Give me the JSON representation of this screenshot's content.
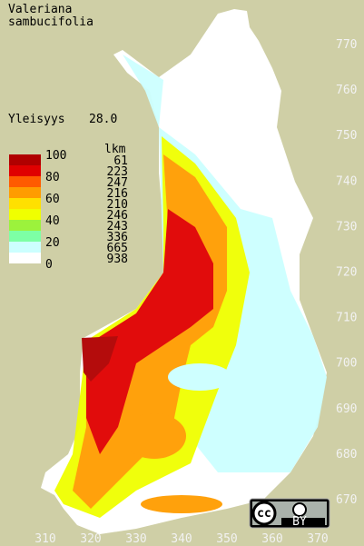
{
  "title": [
    "Valeriana",
    "sambucifolia"
  ],
  "frequency": {
    "label": "Yleisyys",
    "value": "28.0"
  },
  "legend": {
    "count_header": "lkm",
    "scale_labels": [
      100,
      80,
      60,
      40,
      20,
      0
    ],
    "bins": [
      {
        "color": "#b00000",
        "count": 61
      },
      {
        "color": "#e00000",
        "count": 223
      },
      {
        "color": "#ff5a00",
        "count": 247
      },
      {
        "color": "#ff9c00",
        "count": 216
      },
      {
        "color": "#ffe000",
        "count": 210
      },
      {
        "color": "#f0ff00",
        "count": 246
      },
      {
        "color": "#9cf23c",
        "count": 243
      },
      {
        "color": "#7dffa5",
        "count": 336
      },
      {
        "color": "#ccffff",
        "count": 665
      },
      {
        "color": "#ffffff",
        "count": 938
      }
    ]
  },
  "axis": {
    "y_labels": [
      770,
      760,
      750,
      740,
      730,
      720,
      710,
      700,
      690,
      680,
      670
    ],
    "x_labels": [
      310,
      320,
      330,
      340,
      350,
      360,
      370
    ]
  },
  "license": {
    "text": "BY"
  }
}
